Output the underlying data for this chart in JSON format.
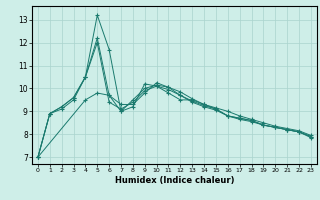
{
  "title": "",
  "xlabel": "Humidex (Indice chaleur)",
  "bg_color": "#ceeee8",
  "grid_color": "#aad4ce",
  "line_color": "#1a7a6e",
  "xlim": [
    -0.5,
    23.5
  ],
  "ylim": [
    6.7,
    13.6
  ],
  "yticks": [
    7,
    8,
    9,
    10,
    11,
    12,
    13
  ],
  "xticks": [
    0,
    1,
    2,
    3,
    4,
    5,
    6,
    7,
    8,
    9,
    10,
    11,
    12,
    13,
    14,
    15,
    16,
    17,
    18,
    19,
    20,
    21,
    22,
    23
  ],
  "series": [
    {
      "x": [
        0,
        1,
        2,
        3,
        4,
        5,
        6,
        7,
        8,
        9,
        10,
        11,
        12,
        13,
        14,
        15,
        16,
        17,
        18,
        19,
        20,
        21,
        22,
        23
      ],
      "y": [
        7.0,
        8.9,
        9.1,
        9.5,
        10.5,
        13.2,
        11.7,
        9.0,
        9.2,
        10.2,
        10.1,
        9.8,
        9.5,
        9.5,
        9.3,
        9.1,
        8.8,
        8.7,
        8.6,
        8.4,
        8.3,
        8.2,
        8.1,
        7.9
      ]
    },
    {
      "x": [
        0,
        1,
        2,
        3,
        4,
        5,
        6,
        7,
        8,
        9,
        10,
        11,
        12,
        13,
        14,
        15,
        16,
        17,
        18,
        19,
        20,
        21,
        22,
        23
      ],
      "y": [
        7.0,
        8.9,
        9.2,
        9.6,
        10.5,
        12.2,
        9.7,
        9.0,
        9.5,
        10.0,
        10.15,
        10.05,
        9.7,
        9.45,
        9.25,
        9.1,
        8.8,
        8.7,
        8.6,
        8.4,
        8.3,
        8.2,
        8.1,
        7.9
      ]
    },
    {
      "x": [
        0,
        4,
        5,
        6,
        7,
        8,
        9,
        10,
        11,
        12,
        13,
        14,
        15,
        16,
        17,
        18,
        19,
        20,
        21,
        22,
        23
      ],
      "y": [
        7.0,
        9.5,
        9.8,
        9.7,
        9.3,
        9.3,
        9.8,
        10.25,
        10.05,
        9.85,
        9.55,
        9.3,
        9.15,
        9.0,
        8.8,
        8.65,
        8.5,
        8.35,
        8.25,
        8.15,
        7.95
      ]
    },
    {
      "x": [
        0,
        1,
        2,
        3,
        4,
        5,
        6,
        7,
        8,
        9,
        10,
        11,
        12,
        13,
        14,
        15,
        16,
        17,
        18,
        19,
        20,
        21,
        22,
        23
      ],
      "y": [
        7.0,
        8.9,
        9.2,
        9.6,
        10.5,
        12.0,
        9.4,
        9.1,
        9.4,
        9.9,
        10.1,
        9.95,
        9.7,
        9.4,
        9.2,
        9.05,
        8.8,
        8.65,
        8.55,
        8.4,
        8.3,
        8.2,
        8.1,
        7.85
      ]
    }
  ]
}
